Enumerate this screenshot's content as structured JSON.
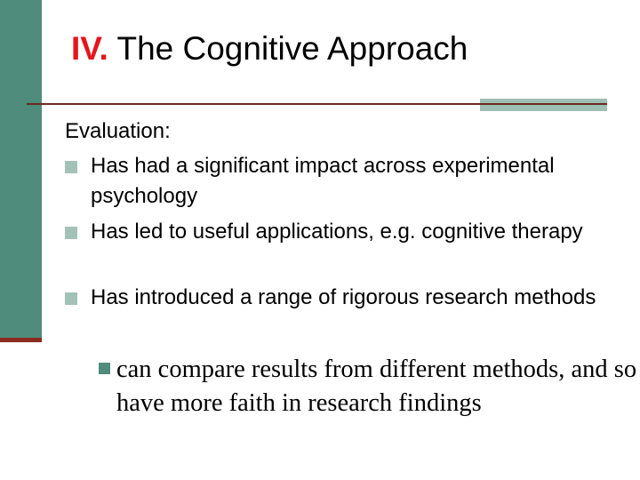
{
  "title": {
    "number": "IV.",
    "text": "The Cognitive Approach"
  },
  "heading": "Evaluation:",
  "bullets": [
    "Has had a significant impact across experimental psychology",
    "Has led to useful applications, e.g. cognitive therapy",
    "Has introduced a range of rigorous research methods"
  ],
  "sub_bullet": "can compare results from different methods, and so have more faith in research findings",
  "colors": {
    "sidebar": "#4f8c7b",
    "title_number": "#e8141b",
    "rule": "#6b2a22",
    "bullet": "#a3c2b7"
  }
}
